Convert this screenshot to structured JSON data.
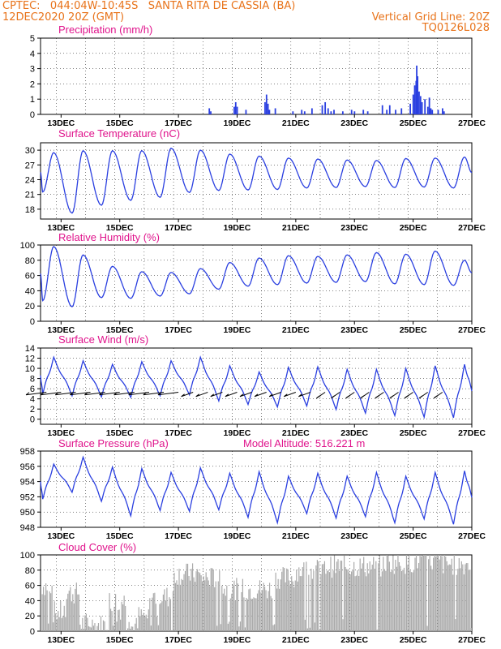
{
  "header": {
    "line1": "CPTEC:   044:04W-10:45S   SANTA RITA DE CASSIA (BA)",
    "line2": "12DEC2020 20Z (GMT)",
    "grid_note": "Vertical Grid Line: 20Z",
    "code": "TQ0126L028"
  },
  "colors": {
    "header": "#e8731a",
    "title": "#e0148c",
    "line": "#2a3fe0",
    "cloud": "#aaaaaa",
    "grid": "#000000"
  },
  "x_ticks": [
    "13DEC",
    "15DEC",
    "17DEC",
    "19DEC",
    "21DEC",
    "23DEC",
    "25DEC",
    "27DEC"
  ],
  "chart_data": [
    {
      "type": "bar",
      "title": "Precipitation (mm/h)",
      "ylim": [
        0,
        5
      ],
      "y_ticks": [
        "0",
        "1",
        "2",
        "3",
        "4",
        "5"
      ],
      "x_range_days": [
        12.3,
        27.0
      ],
      "x": [
        18.05,
        18.1,
        18.9,
        18.95,
        19.0,
        19.3,
        19.95,
        20.0,
        20.05,
        20.1,
        20.3,
        20.9,
        21.2,
        21.3,
        21.55,
        21.9,
        22.0,
        22.1,
        22.2,
        22.3,
        22.6,
        22.9,
        23.0,
        23.3,
        23.45,
        23.95,
        24.1,
        24.2,
        24.4,
        24.6,
        24.9,
        25.0,
        25.05,
        25.1,
        25.12,
        25.15,
        25.2,
        25.25,
        25.3,
        25.4,
        25.5,
        25.55,
        25.6,
        25.65,
        25.85,
        26.0,
        26.05
      ],
      "values": [
        0.4,
        0.2,
        0.5,
        0.8,
        0.5,
        0.3,
        0.8,
        1.3,
        0.7,
        0.3,
        0.4,
        0.2,
        0.3,
        0.2,
        0.4,
        0.6,
        0.8,
        0.4,
        0.2,
        0.3,
        0.2,
        0.3,
        0.2,
        0.3,
        0.2,
        0.6,
        0.3,
        0.6,
        0.3,
        0.4,
        0.7,
        1.3,
        1.9,
        2.2,
        3.2,
        2.5,
        1.5,
        1.2,
        0.8,
        1.0,
        0.5,
        1.1,
        0.4,
        0.3,
        0.3,
        0.4,
        0.2
      ]
    },
    {
      "type": "line",
      "title": "Surface Temperature (nC)",
      "ylim": [
        16,
        31.5
      ],
      "y_ticks": [
        "18",
        "21",
        "24",
        "27",
        "30"
      ],
      "x_range_days": [
        12.3,
        27.0
      ],
      "min_values": [
        21.5,
        17.2,
        18.8,
        19.8,
        20.4,
        21.4,
        21.8,
        21.9,
        22.0,
        22.3,
        22.4,
        22.6,
        22.4,
        22.5,
        22.3
      ],
      "max_values": [
        29.5,
        29.9,
        29.9,
        29.9,
        30.4,
        30.0,
        29.2,
        28.8,
        28.4,
        28.2,
        28.0,
        27.9,
        28.3,
        28.4,
        28.6
      ]
    },
    {
      "type": "line",
      "title": "Relative Humidity (%)",
      "ylim": [
        0,
        100
      ],
      "y_ticks": [
        "0",
        "20",
        "40",
        "60",
        "80",
        "100"
      ],
      "x_range_days": [
        12.3,
        27.0
      ],
      "min_values": [
        27,
        19,
        31,
        30,
        33,
        36,
        42,
        46,
        48,
        50,
        51,
        52,
        49,
        48,
        47
      ],
      "max_values": [
        98,
        87,
        72,
        65,
        64,
        69,
        77,
        83,
        86,
        85,
        87,
        90,
        88,
        92,
        80
      ]
    },
    {
      "type": "line",
      "title": "Surface Wind (m/s)",
      "ylim": [
        -1,
        14
      ],
      "y_ticks": [
        "0",
        "2",
        "4",
        "6",
        "8",
        "10",
        "12",
        "14"
      ],
      "x_range_days": [
        12.3,
        27.0
      ],
      "min_values": [
        5.0,
        4.6,
        4.4,
        4.3,
        4.6,
        4.8,
        3.6,
        2.9,
        2.4,
        2.6,
        1.9,
        1.2,
        0.7,
        0.4,
        0.3
      ],
      "max_values": [
        12.2,
        11.5,
        10.8,
        11.3,
        11.5,
        12.2,
        10.5,
        9.3,
        10.2,
        10.3,
        9.8,
        9.8,
        10.0,
        10.5,
        10.8
      ]
    },
    {
      "type": "line",
      "title": "Surface Pressure (hPa)",
      "annotation": "Model Altitude: 516.221 m",
      "ylim": [
        948,
        958
      ],
      "y_ticks": [
        "948",
        "950",
        "952",
        "954",
        "956",
        "958"
      ],
      "x_range_days": [
        12.3,
        27.0
      ],
      "min_values": [
        951.7,
        952.6,
        951.4,
        949.5,
        950.2,
        950.1,
        950.3,
        949.3,
        948.6,
        949.8,
        949.2,
        949.4,
        948.6,
        949.1,
        948.4
      ],
      "max_values": [
        956.3,
        957.2,
        955.9,
        955.7,
        955.2,
        955.8,
        955.1,
        955.3,
        954.7,
        955.1,
        954.7,
        955.2,
        954.7,
        955.2,
        955.4
      ]
    },
    {
      "type": "bar",
      "title": "Cloud Cover (%)",
      "ylim": [
        0,
        100
      ],
      "y_ticks": [
        "0",
        "20",
        "40",
        "60",
        "80",
        "100"
      ],
      "x_range_days": [
        12.3,
        27.0
      ],
      "segment_days": [
        12.3,
        12.7,
        13.1,
        13.6,
        14.0,
        14.6,
        15.2,
        15.6,
        16.0,
        16.8,
        17.7,
        18.5,
        19.4,
        20.2,
        21.0,
        22.0,
        23.0,
        24.0,
        25.0,
        26.0,
        27.0
      ],
      "segment_cover": [
        60,
        25,
        50,
        10,
        8,
        40,
        5,
        20,
        45,
        75,
        70,
        55,
        55,
        70,
        80,
        85,
        85,
        90,
        92,
        88,
        85
      ]
    }
  ]
}
